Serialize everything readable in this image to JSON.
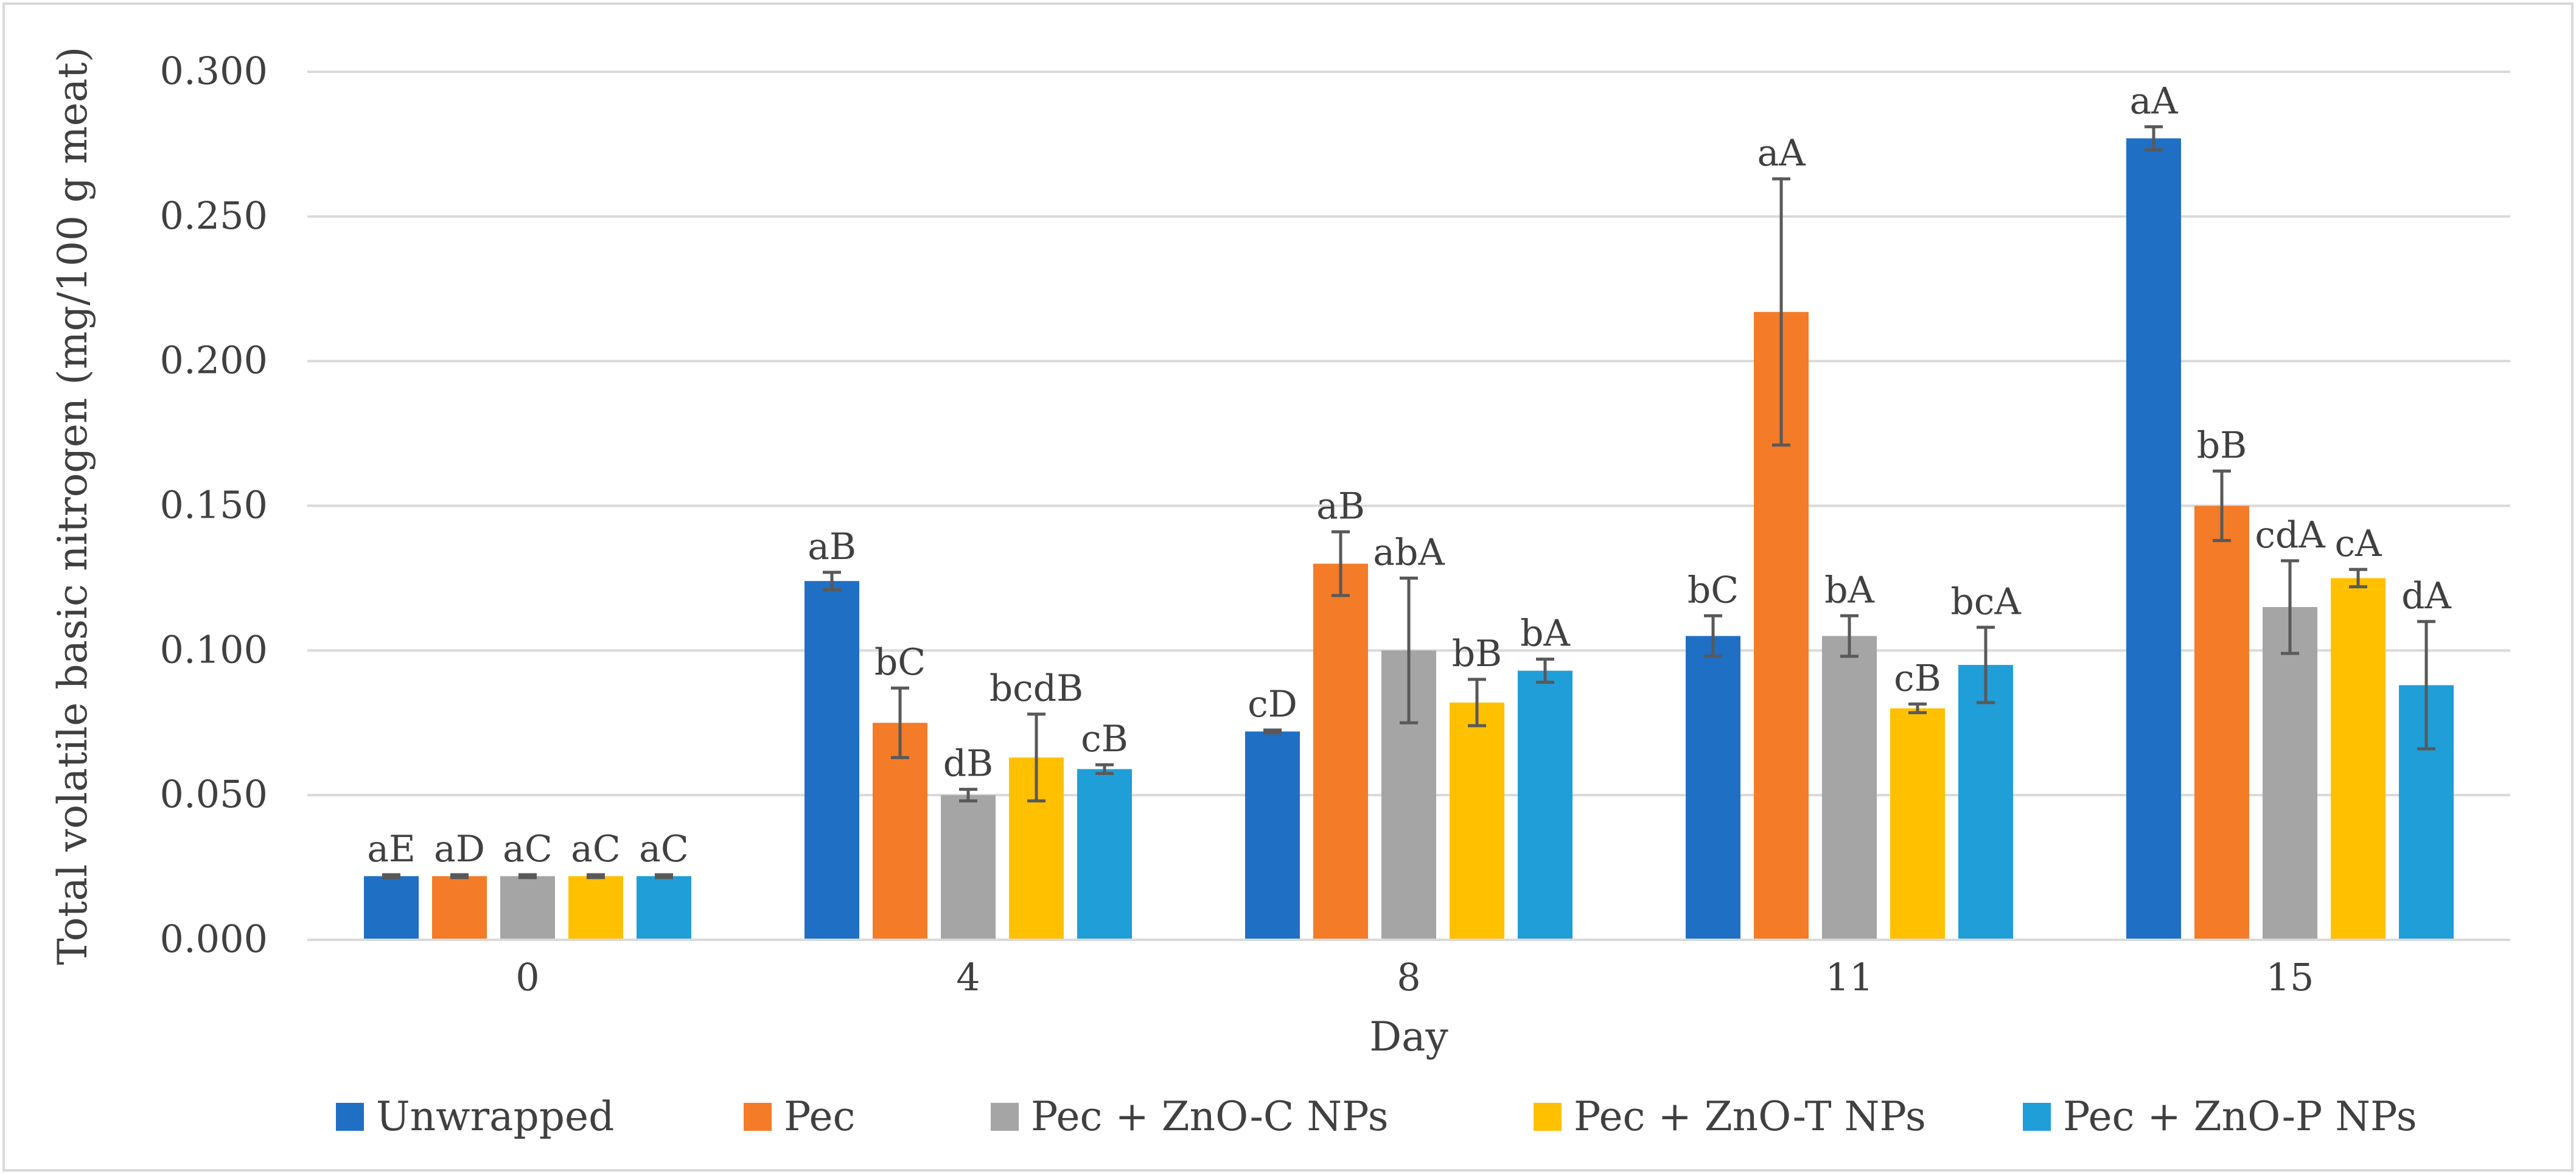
{
  "chart_data": {
    "type": "bar",
    "title": "",
    "xlabel": "Day",
    "ylabel": "Total volatile basic nitrogen (mg/100 g meat)",
    "categories": [
      "0",
      "4",
      "8",
      "11",
      "15"
    ],
    "ylim": [
      0,
      0.3
    ],
    "yticks": [
      "0.000",
      "0.050",
      "0.100",
      "0.150",
      "0.200",
      "0.250",
      "0.300"
    ],
    "grid": true,
    "legend_position": "bottom",
    "series": [
      {
        "name": "Unwrapped",
        "color": "#1f6fc5",
        "values": [
          0.022,
          0.124,
          0.072,
          0.105,
          0.277
        ],
        "errors": [
          0.0005,
          0.003,
          0.0005,
          0.007,
          0.004
        ],
        "labels": [
          "aE",
          "aB",
          "cD",
          "bC",
          "aA"
        ]
      },
      {
        "name": "Pec",
        "color": "#f47b28",
        "values": [
          0.022,
          0.075,
          0.13,
          0.217,
          0.15
        ],
        "errors": [
          0.0005,
          0.012,
          0.011,
          0.046,
          0.012
        ],
        "labels": [
          "aD",
          "bC",
          "aB",
          "aA",
          "bB"
        ]
      },
      {
        "name": "Pec + ZnO-C NPs",
        "color": "#a5a5a5",
        "values": [
          0.022,
          0.05,
          0.1,
          0.105,
          0.115
        ],
        "errors": [
          0.0005,
          0.002,
          0.025,
          0.007,
          0.016
        ],
        "labels": [
          "aC",
          "dB",
          "abA",
          "bA",
          "cdA"
        ]
      },
      {
        "name": "Pec + ZnO-T NPs",
        "color": "#ffc000",
        "values": [
          0.022,
          0.063,
          0.082,
          0.08,
          0.125
        ],
        "errors": [
          0.0005,
          0.015,
          0.008,
          0.0015,
          0.003
        ],
        "labels": [
          "aC",
          "bcdB",
          "bB",
          "cB",
          "cA"
        ]
      },
      {
        "name": "Pec + ZnO-P NPs",
        "color": "#1f9ed8",
        "values": [
          0.022,
          0.059,
          0.093,
          0.095,
          0.088
        ],
        "errors": [
          0.0005,
          0.0015,
          0.004,
          0.013,
          0.022
        ],
        "labels": [
          "aC",
          "cB",
          "bA",
          "bcA",
          "dA"
        ]
      }
    ]
  }
}
